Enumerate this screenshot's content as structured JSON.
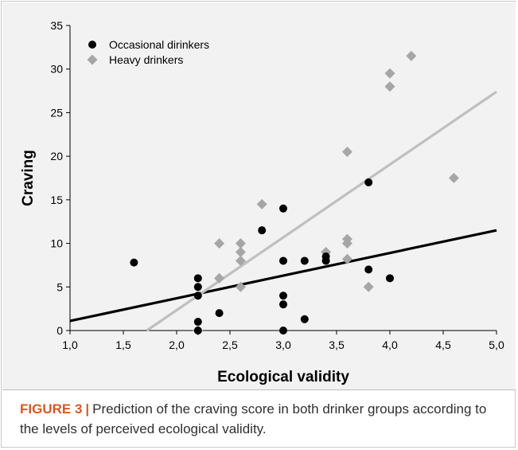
{
  "chart_data": {
    "type": "scatter",
    "xlabel": "Ecological validity",
    "ylabel": "Craving",
    "xlim": [
      1.0,
      5.0
    ],
    "ylim": [
      0,
      35
    ],
    "x_ticks": [
      "1,0",
      "1,5",
      "2,0",
      "2,5",
      "3,0",
      "3,5",
      "4,0",
      "4,5",
      "5,0"
    ],
    "y_ticks": [
      "0",
      "5",
      "10",
      "15",
      "20",
      "25",
      "30",
      "35"
    ],
    "grid": false,
    "legend_position": "top-left",
    "series": [
      {
        "name": "Occasional dirinkers",
        "marker": "circle",
        "color": "#000000",
        "points": [
          [
            1.6,
            7.8
          ],
          [
            2.2,
            6.0
          ],
          [
            2.2,
            5.0
          ],
          [
            2.2,
            4.0
          ],
          [
            2.2,
            1.0
          ],
          [
            2.2,
            0.0
          ],
          [
            2.4,
            2.0
          ],
          [
            2.8,
            11.5
          ],
          [
            3.0,
            14.0
          ],
          [
            3.0,
            8.0
          ],
          [
            3.0,
            4.0
          ],
          [
            3.0,
            3.0
          ],
          [
            3.0,
            0.0
          ],
          [
            3.2,
            8.0
          ],
          [
            3.2,
            1.3
          ],
          [
            3.4,
            8.5
          ],
          [
            3.4,
            8.0
          ],
          [
            3.8,
            17.0
          ],
          [
            3.8,
            7.0
          ],
          [
            4.0,
            6.0
          ]
        ],
        "trendline": {
          "x": [
            1.0,
            5.0
          ],
          "y": [
            1.1,
            11.5
          ],
          "color": "#000000"
        }
      },
      {
        "name": "Heavy drinkers",
        "marker": "diamond",
        "color": "#a6a6a6",
        "points": [
          [
            2.2,
            0.0
          ],
          [
            2.4,
            10.0
          ],
          [
            2.4,
            6.0
          ],
          [
            2.6,
            10.0
          ],
          [
            2.6,
            9.0
          ],
          [
            2.6,
            8.0
          ],
          [
            2.6,
            5.0
          ],
          [
            2.8,
            14.5
          ],
          [
            3.4,
            9.0
          ],
          [
            3.6,
            20.5
          ],
          [
            3.6,
            10.5
          ],
          [
            3.6,
            10.0
          ],
          [
            3.6,
            8.2
          ],
          [
            3.8,
            5.0
          ],
          [
            4.0,
            29.5
          ],
          [
            4.0,
            28.0
          ],
          [
            4.2,
            31.5
          ],
          [
            4.6,
            17.5
          ]
        ],
        "trendline": {
          "x": [
            1.72,
            5.0
          ],
          "y": [
            0.0,
            27.4
          ],
          "color": "#bfbfbf"
        }
      }
    ]
  },
  "caption": {
    "label": "FIGURE 3",
    "separator": "|",
    "text": "Prediction of the craving score in both drinker groups according to the levels of perceived ecological validity."
  }
}
